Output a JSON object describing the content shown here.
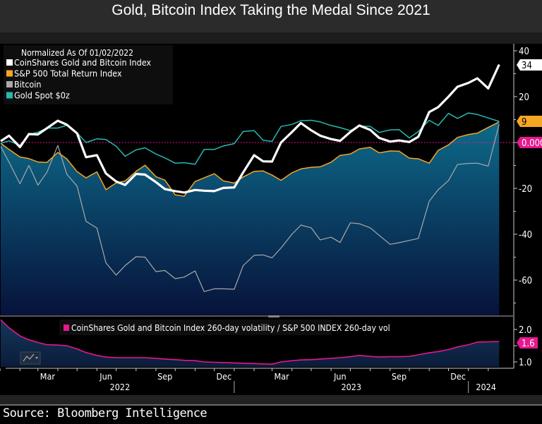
{
  "title": "Gold, Bitcoin Index Taking the Medal Since 2021",
  "source": "Source: Bloomberg Intelligence",
  "chart_data": [
    {
      "type": "line",
      "legend_title": "Normalized As Of 01/02/2022",
      "legend_position": "top-left",
      "ylim": [
        -75,
        42
      ],
      "yticks": [
        40,
        20,
        0,
        -20,
        -40,
        -60
      ],
      "ytick_labels": [
        "40",
        "20",
        "-20",
        "-40",
        "-60"
      ],
      "y_axis_side": "right",
      "reference_line": {
        "value": 0,
        "label": "0.000",
        "color": "#e6178f",
        "style": "dotted"
      },
      "x": [
        "2022-01-02",
        "2022-01-15",
        "2022-02-01",
        "2022-02-15",
        "2022-03-01",
        "2022-03-15",
        "2022-04-01",
        "2022-04-15",
        "2022-05-01",
        "2022-05-15",
        "2022-06-01",
        "2022-06-15",
        "2022-07-01",
        "2022-07-15",
        "2022-08-01",
        "2022-08-15",
        "2022-09-01",
        "2022-09-15",
        "2022-10-01",
        "2022-10-15",
        "2022-11-01",
        "2022-11-15",
        "2022-12-01",
        "2022-12-15",
        "2023-01-01",
        "2023-01-15",
        "2023-02-01",
        "2023-02-15",
        "2023-03-01",
        "2023-03-15",
        "2023-04-01",
        "2023-04-15",
        "2023-05-01",
        "2023-05-15",
        "2023-06-01",
        "2023-06-15",
        "2023-07-01",
        "2023-07-15",
        "2023-08-01",
        "2023-08-15",
        "2023-09-01",
        "2023-09-15",
        "2023-10-01",
        "2023-10-15",
        "2023-11-01",
        "2023-11-15",
        "2023-12-01",
        "2023-12-15",
        "2024-01-01",
        "2024-01-15",
        "2024-02-01",
        "2024-02-18"
      ],
      "series": [
        {
          "name": "Bitcoin",
          "color": "#a9a9a9",
          "end_label": "",
          "values": [
            -1.8,
            -8.6,
            -18,
            -10,
            -18.6,
            -13,
            -1.3,
            -13.8,
            -19,
            -34.4,
            -37.3,
            -52.5,
            -57.8,
            -53.7,
            -49.8,
            -50,
            -56.3,
            -55.8,
            -59.4,
            -58.7,
            -56,
            -65,
            -63.8,
            -63.8,
            -64,
            -53.7,
            -49.2,
            -49,
            -50.3,
            -46,
            -40,
            -36,
            -37.2,
            -42.5,
            -41.3,
            -43.6,
            -35,
            -35.4,
            -37.2,
            -40.5,
            -44.4,
            -43.7,
            -42.7,
            -41.8,
            -25.6,
            -20.6,
            -16.6,
            -9.6,
            -9.1,
            -9,
            -10.3,
            8
          ]
        },
        {
          "name": "S&P 500 Total Return Index",
          "color": "#f5a623",
          "end_label": "9",
          "filled": true,
          "values": [
            -0.3,
            -3,
            -6.3,
            -7,
            -8.5,
            -8.7,
            -4.3,
            -7.1,
            -12.7,
            -15.4,
            -12.8,
            -20.6,
            -17.6,
            -16.8,
            -12.6,
            -9.9,
            -14.9,
            -16.4,
            -22.8,
            -23.4,
            -17,
            -15.4,
            -13.6,
            -16.7,
            -17.7,
            -15,
            -12.6,
            -12.4,
            -14.2,
            -16.5,
            -13.2,
            -11.5,
            -10.8,
            -10.6,
            -8.6,
            -5.6,
            -5,
            -2.8,
            -2.1,
            -4.5,
            -3.7,
            -3.8,
            -6.8,
            -7.1,
            -9,
            -3.4,
            -1,
            2.2,
            3.5,
            4.1,
            6.6,
            9
          ]
        },
        {
          "name": "Gold Spot $0z",
          "color": "#27b9b3",
          "end_label": "",
          "values": [
            -0.3,
            0.7,
            -1.2,
            3.5,
            4.5,
            6.3,
            6.3,
            7.5,
            4.2,
            0,
            1.6,
            1.3,
            -1.6,
            -6,
            -3.2,
            -2.3,
            -5,
            -6.7,
            -9,
            -8.8,
            -9.5,
            -3,
            -3,
            -1.5,
            -0.5,
            4.8,
            5.2,
            1,
            0.5,
            7,
            7.9,
            9.5,
            9.7,
            9,
            7.4,
            6.5,
            5.2,
            7.2,
            7,
            4.4,
            5.5,
            5.6,
            2,
            4.8,
            9.7,
            7.4,
            12.7,
            10.5,
            12.9,
            12.2,
            10.7,
            9.2
          ]
        },
        {
          "name": "CoinShares Gold and Bitcoin Index",
          "color": "#ffffff",
          "end_label": "34",
          "values": [
            0.6,
            3,
            -2,
            3.7,
            3.5,
            6.2,
            9.5,
            7.8,
            4,
            -6.4,
            -5.5,
            -13.5,
            -17,
            -18.5,
            -13.7,
            -14,
            -17.3,
            -20.3,
            -21.2,
            -21.8,
            -20.7,
            -21,
            -21.2,
            -19.8,
            -19.6,
            -13,
            -5.5,
            -8.2,
            -8.3,
            0,
            4.6,
            8.5,
            5.3,
            3,
            1.5,
            0.7,
            4.6,
            7.4,
            5.5,
            2,
            0.4,
            0.9,
            0.2,
            2.5,
            13.3,
            15.4,
            20,
            24.3,
            26,
            28,
            23.6,
            34
          ]
        }
      ],
      "legend_order": [
        "CoinShares Gold and Bitcoin Index",
        "S&P 500 Total Return Index",
        "Bitcoin",
        "Gold Spot $0z"
      ]
    },
    {
      "type": "area",
      "ylim": [
        0.85,
        2.35
      ],
      "yticks": [
        2.0,
        1.5,
        1.0
      ],
      "ytick_labels": [
        "2.0",
        "1.0"
      ],
      "y_axis_side": "right",
      "series": [
        {
          "name": "CoinShares Gold and Bitcoin Index 260-day volatility / S&P 500 INDEX 260-day vol",
          "color": "#e6178f",
          "end_label": "1.6",
          "values": [
            2.3,
            2.05,
            1.8,
            1.68,
            1.6,
            1.53,
            1.52,
            1.5,
            1.4,
            1.29,
            1.2,
            1.15,
            1.13,
            1.13,
            1.13,
            1.13,
            1.11,
            1.09,
            1.07,
            1.05,
            1.04,
            1.0,
            0.99,
            0.98,
            0.97,
            0.96,
            0.95,
            0.94,
            0.93,
            1.0,
            1.04,
            1.06,
            1.07,
            1.09,
            1.11,
            1.13,
            1.16,
            1.2,
            1.17,
            1.15,
            1.16,
            1.16,
            1.17,
            1.22,
            1.28,
            1.32,
            1.38,
            1.46,
            1.53,
            1.61,
            1.62,
            1.63
          ]
        }
      ]
    }
  ],
  "x_axis": {
    "month_labels": [
      {
        "label": "Mar",
        "date": "2022-03-16"
      },
      {
        "label": "Jun",
        "date": "2022-06-15"
      },
      {
        "label": "Sep",
        "date": "2022-09-15"
      },
      {
        "label": "Dec",
        "date": "2022-12-16"
      },
      {
        "label": "Mar",
        "date": "2023-03-16"
      },
      {
        "label": "Jun",
        "date": "2023-06-15"
      },
      {
        "label": "Sep",
        "date": "2023-09-15"
      },
      {
        "label": "Dec",
        "date": "2023-12-16"
      }
    ],
    "year_labels": [
      {
        "label": "2022",
        "start": "2022-01-01",
        "end": "2023-01-01"
      },
      {
        "label": "2023",
        "start": "2023-01-01",
        "end": "2024-01-01"
      },
      {
        "label": "2024",
        "start": "2024-01-01",
        "end": "2024-02-25"
      }
    ]
  },
  "toolbar": {
    "chart_type_icon": "line-chart-icon"
  }
}
